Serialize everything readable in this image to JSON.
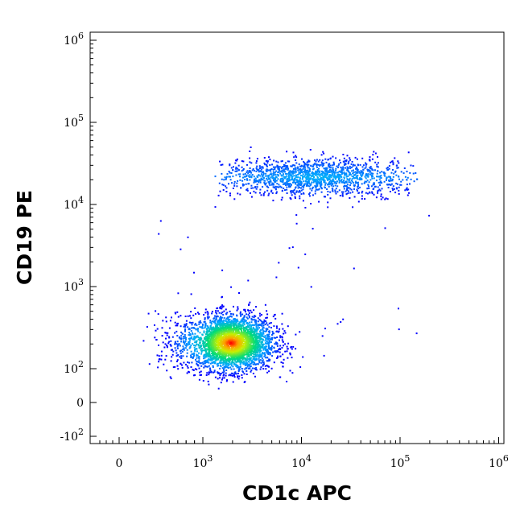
{
  "chart_data": {
    "type": "scatter",
    "title": "",
    "xlabel": "CD1c APC",
    "ylabel": "CD19 PE",
    "x_scale": "biexponential (linear near 0, log above)",
    "y_scale": "biexponential (linear near 0, log above)",
    "xlim": [
      -300,
      1000000
    ],
    "ylim": [
      -150,
      1000000
    ],
    "x_ticks": [
      {
        "value": 0,
        "base": "0",
        "exp": ""
      },
      {
        "value": 1000,
        "base": "10",
        "exp": "3"
      },
      {
        "value": 10000,
        "base": "10",
        "exp": "4"
      },
      {
        "value": 100000,
        "base": "10",
        "exp": "5"
      },
      {
        "value": 1000000,
        "base": "10",
        "exp": "6"
      }
    ],
    "y_ticks": [
      {
        "value": -100,
        "base": "-10",
        "exp": "2"
      },
      {
        "value": 0,
        "base": "0",
        "exp": ""
      },
      {
        "value": 100,
        "base": "10",
        "exp": "2"
      },
      {
        "value": 1000,
        "base": "10",
        "exp": "3"
      },
      {
        "value": 10000,
        "base": "10",
        "exp": "4"
      },
      {
        "value": 100000,
        "base": "10",
        "exp": "5"
      },
      {
        "value": 1000000,
        "base": "10",
        "exp": "6"
      }
    ],
    "color_map": "density (blue low → green → yellow → red high)",
    "colors": {
      "low": "#0000ff",
      "mid_low": "#00c8ff",
      "mid": "#00e060",
      "mid_high": "#ffff00",
      "high": "#ff0000"
    },
    "populations": [
      {
        "name_shown": "",
        "center_x": 1900,
        "center_y": 210,
        "spread_log_x": 0.22,
        "spread_log_y": 0.17,
        "relative_size": 3400
      },
      {
        "name_shown": "",
        "center_x": 18000,
        "center_y": 22000,
        "x_range": [
          2000,
          100000
        ],
        "spread_log_y": 0.11,
        "relative_size": 1500
      }
    ],
    "grid": false,
    "legend": "none"
  }
}
